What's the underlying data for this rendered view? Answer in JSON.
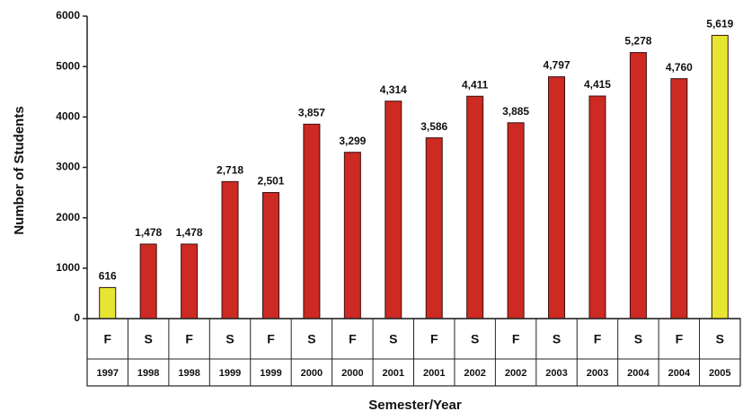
{
  "chart_data": {
    "type": "bar",
    "x_label": "Semester/Year",
    "y_label": "Number of Students",
    "categories": [
      [
        "F",
        "1997"
      ],
      [
        "S",
        "1998"
      ],
      [
        "F",
        "1998"
      ],
      [
        "S",
        "1999"
      ],
      [
        "F",
        "1999"
      ],
      [
        "S",
        "2000"
      ],
      [
        "F",
        "2000"
      ],
      [
        "S",
        "2001"
      ],
      [
        "F",
        "2001"
      ],
      [
        "S",
        "2002"
      ],
      [
        "F",
        "2002"
      ],
      [
        "S",
        "2003"
      ],
      [
        "F",
        "2003"
      ],
      [
        "S",
        "2004"
      ],
      [
        "F",
        "2004"
      ],
      [
        "S",
        "2005"
      ]
    ],
    "values": [
      616,
      1478,
      1478,
      2718,
      2501,
      3857,
      3299,
      4314,
      3586,
      4411,
      3885,
      4797,
      4415,
      5278,
      4760,
      5619
    ],
    "value_labels": [
      "616",
      "1,478",
      "1,478",
      "2,718",
      "2,501",
      "3,857",
      "3,299",
      "4,314",
      "3,586",
      "4,411",
      "3,885",
      "4,797",
      "4,415",
      "5,278",
      "4,760",
      "5,619"
    ],
    "colors": [
      "#e6e632",
      "#cc2a22",
      "#cc2a22",
      "#cc2a22",
      "#cc2a22",
      "#cc2a22",
      "#cc2a22",
      "#cc2a22",
      "#cc2a22",
      "#cc2a22",
      "#cc2a22",
      "#cc2a22",
      "#cc2a22",
      "#cc2a22",
      "#cc2a22",
      "#e6e632"
    ],
    "ylim": [
      0,
      6000
    ],
    "yticks": [
      0,
      1000,
      2000,
      3000,
      4000,
      5000,
      6000
    ],
    "grid": false
  }
}
